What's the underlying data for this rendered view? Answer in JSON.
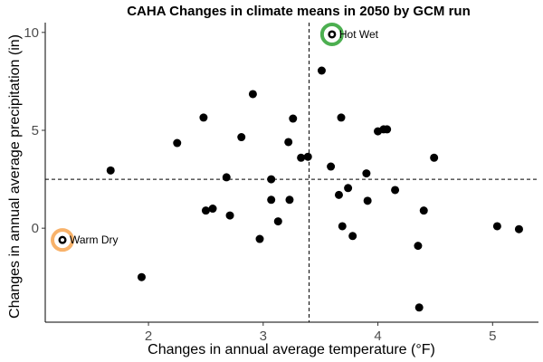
{
  "chart_data": {
    "type": "scatter",
    "title": "CAHA Changes in climate means in 2050 by GCM run",
    "xlabel": "Changes in annual average temperature (°F)",
    "ylabel": "Changes in annual average precipitation (in)",
    "xlim": [
      1.1,
      5.4
    ],
    "ylim": [
      -4.8,
      10.5
    ],
    "xticks": [
      2,
      3,
      4,
      5
    ],
    "yticks": [
      0,
      5,
      10
    ],
    "xtick_labels": [
      "2",
      "3",
      "4",
      "5"
    ],
    "ytick_labels": [
      "0",
      "5",
      "10"
    ],
    "grid": false,
    "reference_lines": {
      "x": 3.4,
      "y": 2.5
    },
    "points": [
      [
        1.25,
        -0.6
      ],
      [
        1.67,
        2.95
      ],
      [
        1.94,
        -2.5
      ],
      [
        2.25,
        4.35
      ],
      [
        2.48,
        5.65
      ],
      [
        2.5,
        0.9
      ],
      [
        2.56,
        1.0
      ],
      [
        2.68,
        2.6
      ],
      [
        2.71,
        0.65
      ],
      [
        2.81,
        4.65
      ],
      [
        2.91,
        6.85
      ],
      [
        2.97,
        -0.55
      ],
      [
        3.07,
        1.45
      ],
      [
        3.07,
        2.5
      ],
      [
        3.13,
        0.35
      ],
      [
        3.22,
        4.4
      ],
      [
        3.23,
        1.45
      ],
      [
        3.26,
        5.6
      ],
      [
        3.33,
        3.6
      ],
      [
        3.39,
        3.65
      ],
      [
        3.51,
        8.05
      ],
      [
        3.59,
        3.15
      ],
      [
        3.6,
        9.9
      ],
      [
        3.66,
        1.7
      ],
      [
        3.68,
        5.65
      ],
      [
        3.69,
        0.1
      ],
      [
        3.74,
        2.05
      ],
      [
        3.78,
        -0.4
      ],
      [
        3.9,
        2.8
      ],
      [
        3.91,
        1.4
      ],
      [
        4.0,
        4.95
      ],
      [
        4.05,
        5.05
      ],
      [
        4.08,
        5.05
      ],
      [
        4.15,
        1.95
      ],
      [
        4.35,
        -0.9
      ],
      [
        4.36,
        -4.05
      ],
      [
        4.4,
        0.9
      ],
      [
        4.49,
        3.6
      ],
      [
        5.04,
        0.1
      ],
      [
        5.23,
        -0.05
      ]
    ],
    "highlights": [
      {
        "label": "Warm Dry",
        "x": 1.25,
        "y": -0.6,
        "color": "#F8B26A"
      },
      {
        "label": "Hot Wet",
        "x": 3.6,
        "y": 9.9,
        "color": "#4CAF50"
      }
    ],
    "point_color": "#000000"
  }
}
